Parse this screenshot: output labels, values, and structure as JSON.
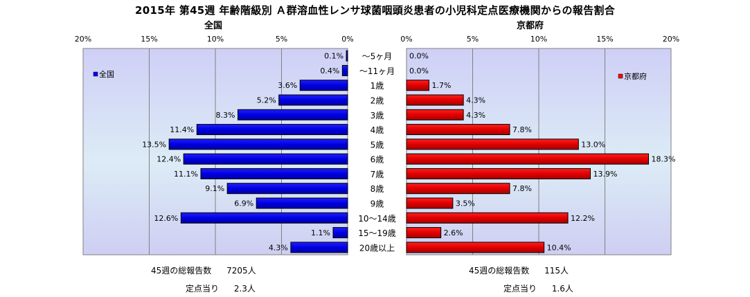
{
  "title": "2015年 第45週 年齢階級別 Ａ群溶血性レンサ球菌咽頭炎患者の小児科定点医療機関からの報告割合",
  "chart_data": [
    {
      "type": "bar",
      "orientation": "horizontal",
      "subtitle": "全国",
      "legend": "全国",
      "legend_position": "top-left",
      "color": "#0000ff",
      "xlim": [
        0,
        20
      ],
      "ticks": [
        "20%",
        "15%",
        "10%",
        "5%",
        "0%"
      ],
      "tick_values": [
        20,
        15,
        10,
        5,
        0
      ],
      "categories": [
        "～5ヶ月",
        "～11ヶ月",
        "1歳",
        "2歳",
        "3歳",
        "4歳",
        "5歳",
        "6歳",
        "7歳",
        "8歳",
        "9歳",
        "10～14歳",
        "15～19歳",
        "20歳以上"
      ],
      "values": [
        0.1,
        0.4,
        3.6,
        5.2,
        8.3,
        11.4,
        13.5,
        12.4,
        11.1,
        9.1,
        6.9,
        12.6,
        1.1,
        4.3
      ],
      "labels": [
        "0.1%",
        "0.4%",
        "3.6%",
        "5.2%",
        "8.3%",
        "11.4%",
        "13.5%",
        "12.4%",
        "11.1%",
        "9.1%",
        "6.9%",
        "12.6%",
        "1.1%",
        "4.3%"
      ],
      "grid": true
    },
    {
      "type": "bar",
      "orientation": "horizontal",
      "subtitle": "京都府",
      "legend": "京都府",
      "legend_position": "top-right",
      "color": "#ff0000",
      "xlim": [
        0,
        20
      ],
      "ticks": [
        "0%",
        "5%",
        "10%",
        "15%",
        "20%"
      ],
      "tick_values": [
        0,
        5,
        10,
        15,
        20
      ],
      "categories": [
        "～5ヶ月",
        "～11ヶ月",
        "1歳",
        "2歳",
        "3歳",
        "4歳",
        "5歳",
        "6歳",
        "7歳",
        "8歳",
        "9歳",
        "10～14歳",
        "15～19歳",
        "20歳以上"
      ],
      "values": [
        0.0,
        0.0,
        1.7,
        4.3,
        4.3,
        7.8,
        13.0,
        18.3,
        13.9,
        7.8,
        3.5,
        12.2,
        2.6,
        10.4
      ],
      "labels": [
        "0.0%",
        "0.0%",
        "1.7%",
        "4.3%",
        "4.3%",
        "7.8%",
        "13.0%",
        "18.3%",
        "13.9%",
        "7.8%",
        "3.5%",
        "12.2%",
        "2.6%",
        "10.4%"
      ],
      "grid": true
    }
  ],
  "footer": {
    "national": {
      "total_label": "45週の総報告数",
      "total_value": "7205人",
      "per_label": "定点当り",
      "per_value": "2.3人"
    },
    "kyoto": {
      "total_label": "45週の総報告数",
      "total_value": "115人",
      "per_label": "定点当り",
      "per_value": "1.6人"
    }
  }
}
